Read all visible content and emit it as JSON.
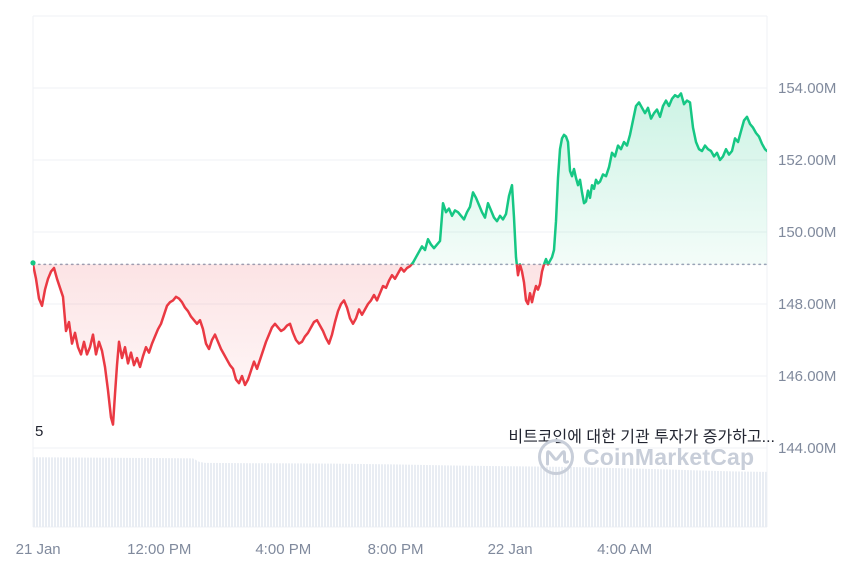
{
  "chart_data": {
    "type": "area",
    "title": "",
    "baseline_value_m": 149.1,
    "ylim_m": [
      144,
      156
    ],
    "grid": true,
    "y_ticks": [
      {
        "value": 154,
        "label": "154.00M"
      },
      {
        "value": 152,
        "label": "152.00M"
      },
      {
        "value": 150,
        "label": "150.00M"
      },
      {
        "value": 148,
        "label": "148.00M"
      },
      {
        "value": 146,
        "label": "146.00M"
      },
      {
        "value": 144,
        "label": "144.00M"
      }
    ],
    "gridline_values": [
      156,
      154,
      152,
      150,
      148,
      146,
      144
    ],
    "x_ticks": [
      {
        "label": "21 Jan",
        "pos": 0.007
      },
      {
        "label": "12:00 PM",
        "pos": 0.172
      },
      {
        "label": "4:00 PM",
        "pos": 0.341
      },
      {
        "label": "8:00 PM",
        "pos": 0.494
      },
      {
        "label": "22 Jan",
        "pos": 0.65
      },
      {
        "label": "4:00 AM",
        "pos": 0.806
      }
    ],
    "price_series_m": {
      "name": "price",
      "x_unit": "timeline offset 0-734 (21 Jan morning to 22 Jan morning)",
      "points": [
        [
          0,
          149.1
        ],
        [
          3,
          148.7
        ],
        [
          6,
          148.15
        ],
        [
          9,
          147.95
        ],
        [
          12,
          148.4
        ],
        [
          15,
          148.7
        ],
        [
          18,
          148.9
        ],
        [
          21,
          149.0
        ],
        [
          24,
          148.7
        ],
        [
          27,
          148.45
        ],
        [
          30,
          148.2
        ],
        [
          33,
          147.25
        ],
        [
          36,
          147.5
        ],
        [
          39,
          146.9
        ],
        [
          42,
          147.2
        ],
        [
          45,
          146.8
        ],
        [
          48,
          146.6
        ],
        [
          51,
          146.95
        ],
        [
          54,
          146.6
        ],
        [
          57,
          146.8
        ],
        [
          60,
          147.15
        ],
        [
          63,
          146.6
        ],
        [
          66,
          146.95
        ],
        [
          69,
          146.7
        ],
        [
          72,
          146.25
        ],
        [
          75,
          145.6
        ],
        [
          78,
          144.85
        ],
        [
          80,
          144.65
        ],
        [
          82,
          145.5
        ],
        [
          84,
          146.3
        ],
        [
          86,
          146.95
        ],
        [
          89,
          146.5
        ],
        [
          92,
          146.8
        ],
        [
          95,
          146.35
        ],
        [
          98,
          146.65
        ],
        [
          101,
          146.3
        ],
        [
          104,
          146.5
        ],
        [
          107,
          146.25
        ],
        [
          110,
          146.55
        ],
        [
          113,
          146.8
        ],
        [
          116,
          146.65
        ],
        [
          119,
          146.9
        ],
        [
          122,
          147.1
        ],
        [
          125,
          147.3
        ],
        [
          128,
          147.45
        ],
        [
          131,
          147.7
        ],
        [
          134,
          147.95
        ],
        [
          137,
          148.05
        ],
        [
          140,
          148.1
        ],
        [
          143,
          148.2
        ],
        [
          146,
          148.15
        ],
        [
          149,
          148.05
        ],
        [
          152,
          147.9
        ],
        [
          155,
          147.8
        ],
        [
          158,
          147.65
        ],
        [
          161,
          147.55
        ],
        [
          164,
          147.45
        ],
        [
          167,
          147.55
        ],
        [
          170,
          147.3
        ],
        [
          173,
          146.9
        ],
        [
          176,
          146.75
        ],
        [
          179,
          147.0
        ],
        [
          182,
          147.15
        ],
        [
          185,
          146.95
        ],
        [
          188,
          146.75
        ],
        [
          191,
          146.6
        ],
        [
          194,
          146.45
        ],
        [
          197,
          146.3
        ],
        [
          200,
          146.2
        ],
        [
          203,
          145.9
        ],
        [
          206,
          145.8
        ],
        [
          209,
          146.0
        ],
        [
          212,
          145.75
        ],
        [
          215,
          145.9
        ],
        [
          218,
          146.15
        ],
        [
          221,
          146.4
        ],
        [
          224,
          146.2
        ],
        [
          227,
          146.45
        ],
        [
          230,
          146.7
        ],
        [
          233,
          146.95
        ],
        [
          236,
          147.15
        ],
        [
          239,
          147.35
        ],
        [
          242,
          147.45
        ],
        [
          245,
          147.35
        ],
        [
          248,
          147.25
        ],
        [
          251,
          147.3
        ],
        [
          254,
          147.4
        ],
        [
          257,
          147.45
        ],
        [
          260,
          147.2
        ],
        [
          263,
          147.0
        ],
        [
          266,
          146.9
        ],
        [
          269,
          146.95
        ],
        [
          272,
          147.1
        ],
        [
          275,
          147.2
        ],
        [
          278,
          147.35
        ],
        [
          281,
          147.5
        ],
        [
          284,
          147.55
        ],
        [
          287,
          147.4
        ],
        [
          290,
          147.25
        ],
        [
          293,
          147.05
        ],
        [
          296,
          146.9
        ],
        [
          299,
          147.15
        ],
        [
          302,
          147.5
        ],
        [
          305,
          147.8
        ],
        [
          308,
          148.0
        ],
        [
          311,
          148.1
        ],
        [
          314,
          147.9
        ],
        [
          317,
          147.6
        ],
        [
          320,
          147.45
        ],
        [
          323,
          147.6
        ],
        [
          326,
          147.85
        ],
        [
          329,
          147.7
        ],
        [
          332,
          147.85
        ],
        [
          335,
          148.0
        ],
        [
          338,
          148.1
        ],
        [
          341,
          148.25
        ],
        [
          344,
          148.1
        ],
        [
          347,
          148.3
        ],
        [
          350,
          148.5
        ],
        [
          353,
          148.45
        ],
        [
          356,
          148.65
        ],
        [
          359,
          148.8
        ],
        [
          362,
          148.7
        ],
        [
          365,
          148.85
        ],
        [
          368,
          149.0
        ],
        [
          371,
          148.9
        ],
        [
          374,
          149.0
        ],
        [
          377,
          149.05
        ],
        [
          380,
          149.15
        ],
        [
          383,
          149.3
        ],
        [
          386,
          149.45
        ],
        [
          389,
          149.6
        ],
        [
          392,
          149.5
        ],
        [
          395,
          149.8
        ],
        [
          398,
          149.65
        ],
        [
          401,
          149.55
        ],
        [
          404,
          149.65
        ],
        [
          407,
          149.75
        ],
        [
          410,
          150.8
        ],
        [
          413,
          150.55
        ],
        [
          416,
          150.65
        ],
        [
          419,
          150.45
        ],
        [
          422,
          150.6
        ],
        [
          425,
          150.55
        ],
        [
          428,
          150.45
        ],
        [
          431,
          150.35
        ],
        [
          434,
          150.55
        ],
        [
          437,
          150.7
        ],
        [
          440,
          151.1
        ],
        [
          443,
          150.95
        ],
        [
          446,
          150.75
        ],
        [
          449,
          150.55
        ],
        [
          452,
          150.4
        ],
        [
          455,
          150.8
        ],
        [
          458,
          150.6
        ],
        [
          461,
          150.4
        ],
        [
          464,
          150.3
        ],
        [
          467,
          150.45
        ],
        [
          470,
          150.35
        ],
        [
          473,
          150.5
        ],
        [
          476,
          151.0
        ],
        [
          479,
          151.3
        ],
        [
          481,
          150.4
        ],
        [
          483,
          149.3
        ],
        [
          485,
          148.8
        ],
        [
          487,
          149.1
        ],
        [
          489,
          148.9
        ],
        [
          491,
          148.6
        ],
        [
          493,
          148.1
        ],
        [
          495,
          148.0
        ],
        [
          497,
          148.3
        ],
        [
          499,
          148.05
        ],
        [
          501,
          148.3
        ],
        [
          503,
          148.5
        ],
        [
          505,
          148.4
        ],
        [
          507,
          148.55
        ],
        [
          509,
          148.9
        ],
        [
          511,
          149.1
        ],
        [
          513,
          149.25
        ],
        [
          515,
          149.1
        ],
        [
          517,
          149.2
        ],
        [
          519,
          149.3
        ],
        [
          521,
          149.5
        ],
        [
          523,
          150.3
        ],
        [
          525,
          151.5
        ],
        [
          527,
          152.3
        ],
        [
          529,
          152.6
        ],
        [
          531,
          152.7
        ],
        [
          533,
          152.65
        ],
        [
          535,
          152.5
        ],
        [
          537,
          151.7
        ],
        [
          539,
          151.55
        ],
        [
          541,
          151.75
        ],
        [
          543,
          151.5
        ],
        [
          545,
          151.3
        ],
        [
          547,
          151.45
        ],
        [
          549,
          151.1
        ],
        [
          551,
          150.8
        ],
        [
          553,
          150.85
        ],
        [
          555,
          151.15
        ],
        [
          557,
          150.95
        ],
        [
          559,
          151.3
        ],
        [
          561,
          151.2
        ],
        [
          563,
          151.45
        ],
        [
          565,
          151.35
        ],
        [
          567,
          151.4
        ],
        [
          570,
          151.6
        ],
        [
          573,
          151.55
        ],
        [
          576,
          151.8
        ],
        [
          579,
          152.2
        ],
        [
          582,
          152.1
        ],
        [
          585,
          152.4
        ],
        [
          588,
          152.3
        ],
        [
          591,
          152.5
        ],
        [
          594,
          152.4
        ],
        [
          597,
          152.7
        ],
        [
          600,
          153.1
        ],
        [
          603,
          153.5
        ],
        [
          606,
          153.6
        ],
        [
          609,
          153.45
        ],
        [
          612,
          153.3
        ],
        [
          615,
          153.45
        ],
        [
          618,
          153.15
        ],
        [
          621,
          153.3
        ],
        [
          624,
          153.4
        ],
        [
          627,
          153.2
        ],
        [
          630,
          153.5
        ],
        [
          633,
          153.65
        ],
        [
          636,
          153.5
        ],
        [
          639,
          153.7
        ],
        [
          642,
          153.8
        ],
        [
          645,
          153.75
        ],
        [
          648,
          153.85
        ],
        [
          651,
          153.55
        ],
        [
          654,
          153.65
        ],
        [
          657,
          153.6
        ],
        [
          660,
          152.9
        ],
        [
          663,
          152.5
        ],
        [
          666,
          152.3
        ],
        [
          669,
          152.25
        ],
        [
          672,
          152.4
        ],
        [
          675,
          152.3
        ],
        [
          678,
          152.25
        ],
        [
          681,
          152.1
        ],
        [
          684,
          152.2
        ],
        [
          687,
          152.0
        ],
        [
          690,
          152.1
        ],
        [
          693,
          152.3
        ],
        [
          696,
          152.15
        ],
        [
          699,
          152.25
        ],
        [
          702,
          152.6
        ],
        [
          705,
          152.5
        ],
        [
          708,
          152.8
        ],
        [
          711,
          153.1
        ],
        [
          714,
          153.2
        ],
        [
          717,
          153.0
        ],
        [
          720,
          152.9
        ],
        [
          723,
          152.75
        ],
        [
          726,
          152.65
        ],
        [
          729,
          152.45
        ],
        [
          732,
          152.3
        ],
        [
          734,
          152.25
        ]
      ]
    },
    "volume_series_norm": {
      "note": "no numeric axis shown; heights normalized 0-1 of lower panel",
      "points": [
        [
          0,
          0.93
        ],
        [
          60,
          0.925
        ],
        [
          120,
          0.92
        ],
        [
          160,
          0.915
        ],
        [
          166,
          0.87
        ],
        [
          172,
          0.855
        ],
        [
          240,
          0.85
        ],
        [
          300,
          0.845
        ],
        [
          360,
          0.835
        ],
        [
          420,
          0.82
        ],
        [
          480,
          0.81
        ],
        [
          540,
          0.8
        ],
        [
          600,
          0.78
        ],
        [
          640,
          0.765
        ],
        [
          675,
          0.75
        ],
        [
          705,
          0.74
        ],
        [
          734,
          0.735
        ]
      ]
    },
    "colors": {
      "up": "#16C784",
      "down": "#EA3943",
      "baseline_dot": "#16C784",
      "baseline_line": "#9aa4b8",
      "grid": "#eff2f5",
      "axis_text": "#808a9d",
      "volume_fill": "#e9edf3"
    }
  },
  "annotations": {
    "news_count": "5",
    "headline": "비트코인에 대한 기관 투자가 증가하고..."
  },
  "watermark": {
    "text": "CoinMarketCap"
  }
}
